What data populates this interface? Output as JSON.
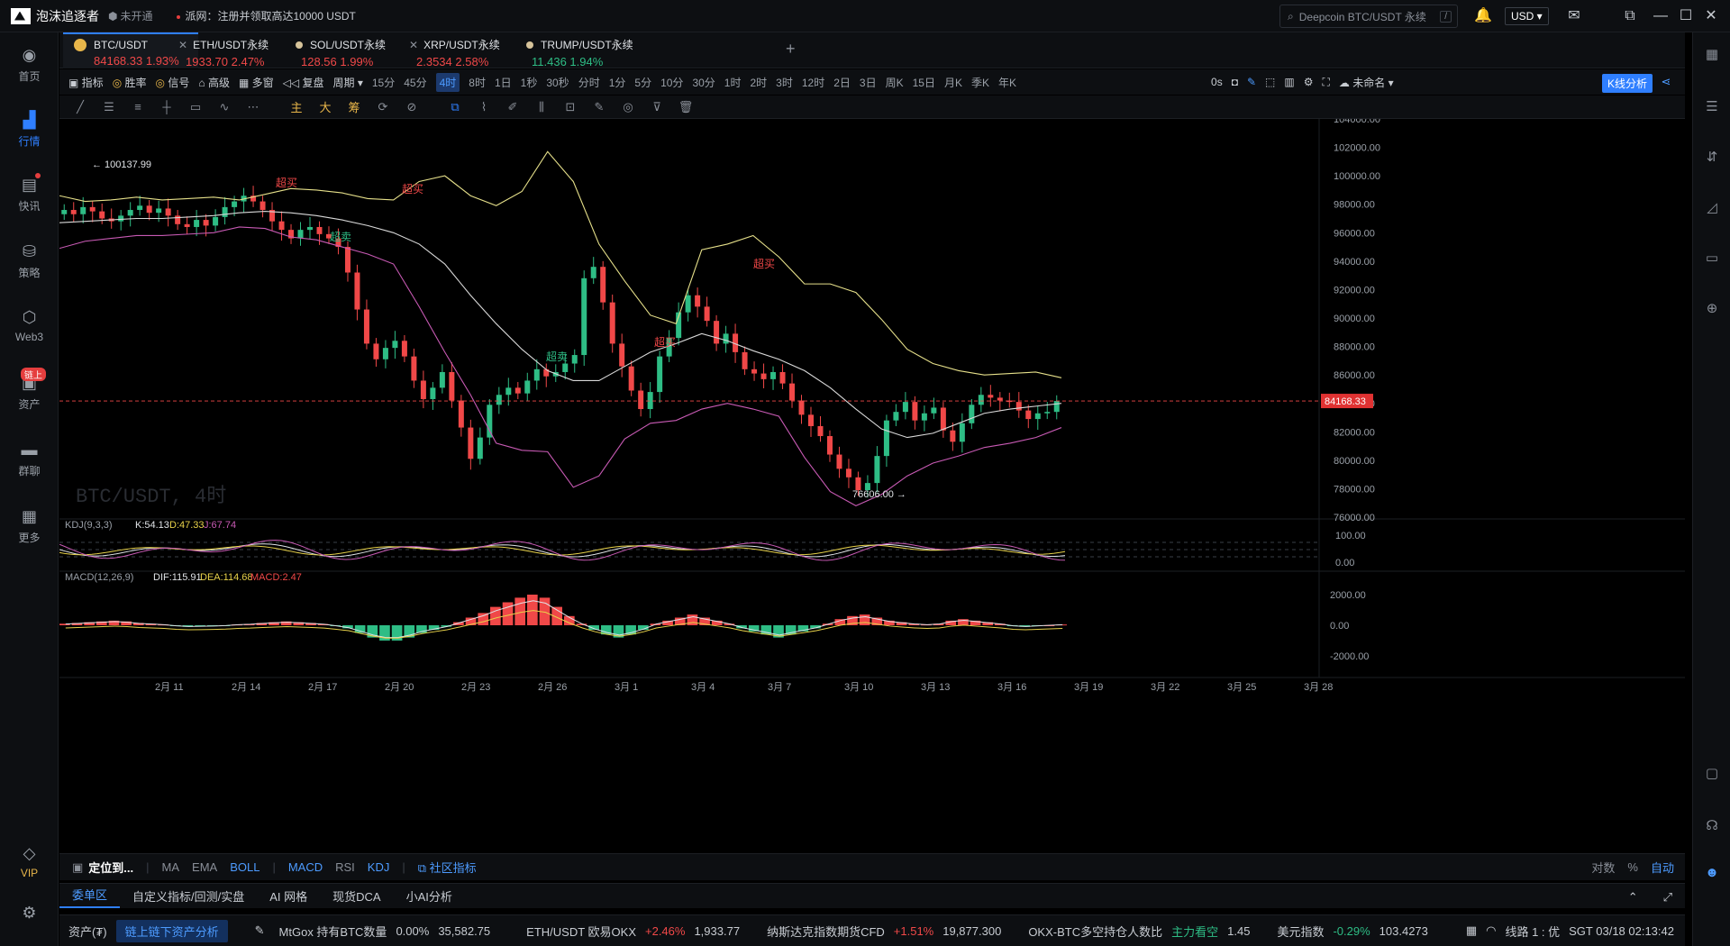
{
  "titlebar": {
    "app_name": "泡沫追逐者",
    "status": "未开通",
    "notice": "派网：注册并领取高达10000 USDT",
    "search_placeholder": "Deepcoin BTC/USDT 永续",
    "search_shortcut": "/",
    "currency": "USD"
  },
  "sidebar": {
    "items": [
      {
        "label": "首页",
        "icon": "home-icon"
      },
      {
        "label": "行情",
        "icon": "chart-bar-icon"
      },
      {
        "label": "快讯",
        "icon": "news-icon"
      },
      {
        "label": "策略",
        "icon": "robot-icon"
      },
      {
        "label": "Web3",
        "icon": "web3-icon"
      },
      {
        "label": "资产",
        "icon": "wallet-icon",
        "badge": "链上"
      },
      {
        "label": "群聊",
        "icon": "chat-icon"
      },
      {
        "label": "更多",
        "icon": "grid-icon"
      }
    ],
    "vip": "VIP"
  },
  "tabs": [
    {
      "name": "BTC/USDT",
      "price": "84168.33",
      "change": "1.93%"
    },
    {
      "name": "ETH/USDT永续",
      "price": "1933.70",
      "change": "2.47%"
    },
    {
      "name": "SOL/USDT永续",
      "price": "128.56",
      "change": "1.99%"
    },
    {
      "name": "XRP/USDT永续",
      "price": "2.3534",
      "change": "2.58%"
    },
    {
      "name": "TRUMP/USDT永续",
      "price": "11.436",
      "change": "1.94%"
    }
  ],
  "toolbar": {
    "items": [
      "指标",
      "胜率",
      "信号",
      "高级",
      "多窗",
      "复盘",
      "周期"
    ],
    "periods": [
      "15分",
      "45分",
      "4时",
      "8时",
      "1日",
      "1秒",
      "30秒",
      "分时",
      "1分",
      "5分",
      "10分",
      "30分",
      "1时",
      "2时",
      "3时",
      "12时",
      "2日",
      "3日",
      "周K",
      "15日",
      "月K",
      "季K",
      "年K"
    ],
    "selected_period": "4时",
    "countdown": "0s",
    "layout_name": "未命名",
    "kline_button": "K线分析"
  },
  "drawbar": {
    "tools": [
      "主",
      "大",
      "筹"
    ]
  },
  "chart_data": {
    "type": "candlestick",
    "symbol_watermark": "BTC/USDT, 4时",
    "last_price": "84168.33",
    "high_label": "100137.99",
    "low_label": "76606.00",
    "signal_labels": {
      "buy": "超买",
      "sell": "超卖"
    },
    "price_axis": [
      "104000.00",
      "102000.00",
      "100000.00",
      "98000.00",
      "96000.00",
      "94000.00",
      "92000.00",
      "90000.00",
      "88000.00",
      "86000.00",
      "84000.00",
      "82000.00",
      "80000.00",
      "78000.00",
      "76000.00"
    ],
    "ylim": [
      76000,
      104000
    ],
    "date_axis": [
      "2月 11",
      "2月 14",
      "2月 17",
      "2月 20",
      "2月 23",
      "2月 26",
      "3月 1",
      "3月 4",
      "3月 7",
      "3月 10",
      "3月 13",
      "3月 16",
      "3月 19",
      "3月 22",
      "3月 25",
      "3月 28"
    ],
    "close_series": [
      97600,
      97300,
      97800,
      97500,
      97000,
      96800,
      97200,
      97600,
      97900,
      97400,
      97700,
      97200,
      96600,
      96400,
      96900,
      96500,
      97100,
      97800,
      98200,
      98600,
      98200,
      97600,
      96800,
      96200,
      95600,
      96200,
      96400,
      95900,
      95600,
      95000,
      93200,
      90600,
      88200,
      87100,
      87900,
      88400,
      87300,
      85600,
      84300,
      85100,
      86200,
      84200,
      82300,
      80100,
      81600,
      83900,
      84600,
      85100,
      84700,
      85600,
      86400,
      85900,
      86200,
      86800,
      87400,
      92800,
      93600,
      91100,
      88200,
      86600,
      84900,
      83600,
      84800,
      87300,
      88600,
      90400,
      91600,
      90800,
      89800,
      88200,
      88900,
      87600,
      86400,
      86100,
      85700,
      86200,
      85400,
      84200,
      83200,
      82400,
      81700,
      80400,
      79400,
      78800,
      77900,
      78400,
      80300,
      82800,
      83400,
      84100,
      82800,
      83300,
      83700,
      82100,
      81300,
      82600,
      83900,
      84600,
      84400,
      84200,
      84100,
      83500,
      82900,
      83300,
      83400,
      84168
    ],
    "bollinger": {
      "upper": [
        98600,
        98200,
        98300,
        98500,
        98300,
        98400,
        98500,
        98300,
        98700,
        99100,
        99000,
        98800,
        98400,
        98300,
        99600,
        100000,
        98600,
        97900,
        98900,
        101700,
        99600,
        95200,
        92600,
        90200,
        89600,
        94800,
        95200,
        95800,
        94300,
        92400,
        92400,
        91800,
        89900,
        87800,
        86800,
        86300,
        86000,
        86100,
        86200,
        85800
      ],
      "middle": [
        96700,
        96800,
        96900,
        97000,
        97000,
        97100,
        97200,
        97400,
        97500,
        97400,
        97200,
        96900,
        96500,
        96000,
        95200,
        93800,
        91600,
        89600,
        87800,
        86300,
        85600,
        85600,
        86600,
        87600,
        88200,
        88900,
        88400,
        87700,
        87100,
        86300,
        85100,
        83600,
        82200,
        81600,
        81900,
        82600,
        83300,
        83600,
        83800,
        84000
      ],
      "lower": [
        94900,
        95400,
        95600,
        95800,
        95800,
        95900,
        96000,
        96400,
        96300,
        95700,
        95500,
        95000,
        94500,
        93800,
        90800,
        87600,
        84600,
        81200,
        80700,
        80600,
        78100,
        78900,
        81500,
        82600,
        82800,
        83600,
        84000,
        83600,
        83100,
        80200,
        77800,
        76800,
        77600,
        78900,
        79800,
        80300,
        80900,
        81200,
        81600,
        82300
      ]
    },
    "kdj": {
      "label": "KDJ(9,3,3)",
      "K": "K:54.13",
      "D": "D:47.33",
      "J": "J:67.74",
      "axis": [
        "100.00",
        "0.00"
      ]
    },
    "macd": {
      "label": "MACD(12,26,9)",
      "DIF": "DIF:115.91",
      "DEA": "DEA:114.68",
      "MACD": "MACD:2.47",
      "axis": [
        "2000.00",
        "0.00",
        "-2000.00"
      ],
      "hist": [
        100,
        150,
        200,
        250,
        300,
        250,
        150,
        100,
        50,
        -50,
        -100,
        -80,
        -60,
        -30,
        50,
        80,
        150,
        200,
        250,
        200,
        150,
        80,
        -50,
        -200,
        -500,
        -800,
        -1000,
        -1000,
        -800,
        -500,
        -300,
        -100,
        200,
        500,
        800,
        1200,
        1500,
        1800,
        2000,
        1800,
        1200,
        600,
        100,
        -300,
        -600,
        -800,
        -600,
        -300,
        100,
        300,
        500,
        700,
        500,
        300,
        100,
        -200,
        -400,
        -600,
        -800,
        -600,
        -400,
        -200,
        100,
        400,
        600,
        700,
        500,
        300,
        200,
        100,
        50,
        100,
        300,
        400,
        300,
        200,
        100,
        -50,
        -100,
        -50,
        0,
        50
      ]
    }
  },
  "bottombar1": {
    "locate": "定位到...",
    "indicators": [
      "MA",
      "EMA",
      "BOLL",
      "MACD",
      "RSI",
      "KDJ"
    ],
    "community": "社区指标",
    "right": [
      "对数",
      "%",
      "自动"
    ]
  },
  "bottombar2": {
    "tabs": [
      "委单区",
      "自定义指标/回测/实盘",
      "AI 网格",
      "现货DCA",
      "小AI分析"
    ]
  },
  "statusbar": {
    "assets": "资产(₮)",
    "onchain": "链上链下资产分析",
    "items": [
      {
        "label": "MtGox 持有BTC数量",
        "change": "0.00%",
        "value": "35,582.75"
      },
      {
        "label": "ETH/USDT 欧易OKX",
        "change": "+2.46%",
        "value": "1,933.77"
      },
      {
        "label": "纳斯达克指数期货CFD",
        "change": "+1.51%",
        "value": "19,877.300"
      },
      {
        "label": "OKX-BTC多空持仓人数比",
        "change": "主力看空",
        "value": "1.45"
      },
      {
        "label": "美元指数",
        "change": "-0.29%",
        "value": "103.4273"
      }
    ],
    "line": "线路 1 : 优",
    "time": "SGT 03/18 02:13:42"
  },
  "colors": {
    "up": "#2ebd85",
    "down": "#f04848",
    "accent": "#2f7fff",
    "boll_upper": "#e6e08a",
    "boll_mid": "#d8d8d8",
    "boll_lower": "#c85ab4"
  }
}
